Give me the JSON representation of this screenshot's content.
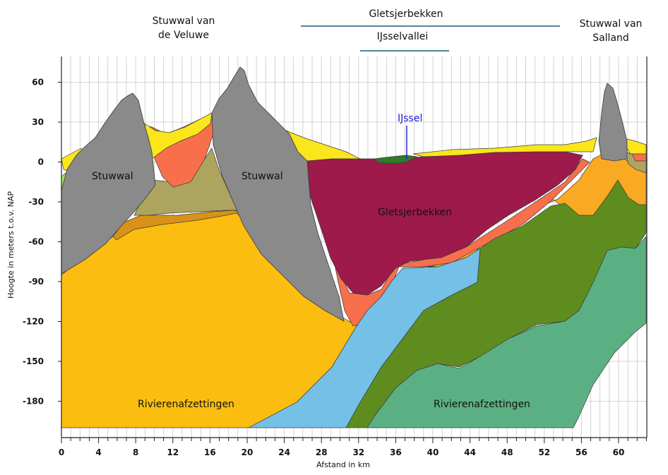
{
  "headers": {
    "veluwe_line1": "Stuwwal van",
    "veluwe_line2": "de Veluwe",
    "gletsjerbekken": "Gletsjerbekken",
    "ijsselvallei": "IJsselvallei",
    "salland_line1": "Stuwwal van",
    "salland_line2": "Salland"
  },
  "labels": {
    "stuwwal_left": "Stuwwal",
    "stuwwal_right": "Stuwwal",
    "gletsjerbekken": "Gletsjerbekken",
    "ijssel": "IJssel",
    "rivier_left": "Rivierenafzettingen",
    "rivier_right": "Rivierenafzettingen"
  },
  "axes": {
    "ylabel": "Hoogte in meters t.o.v. NAP",
    "xlabel": "Afstand in km",
    "yticks": [
      "60",
      "30",
      "0",
      "-30",
      "-60",
      "-90",
      "-120",
      "-150",
      "-180"
    ],
    "xticks": [
      "0",
      "4",
      "8",
      "12",
      "16",
      "20",
      "24",
      "28",
      "32",
      "36",
      "40",
      "44",
      "48",
      "52",
      "56",
      "60"
    ]
  },
  "colors": {
    "grid": "#c8c8c8",
    "stuwwal": "#8a8a8a",
    "gletsjerbekken": "#9e1a4a",
    "rivier_yellow": "#fbbd10",
    "orange": "#f9aa22",
    "blue": "#74c0e6",
    "dark_green": "#5f8c1f",
    "light_green": "#5bb083",
    "salmon": "#f7704b",
    "khaki": "#ada55f",
    "bright_yellow": "#fbe61b",
    "lime": "#9be85a",
    "ijssel_text": "#1a1ad8"
  }
}
